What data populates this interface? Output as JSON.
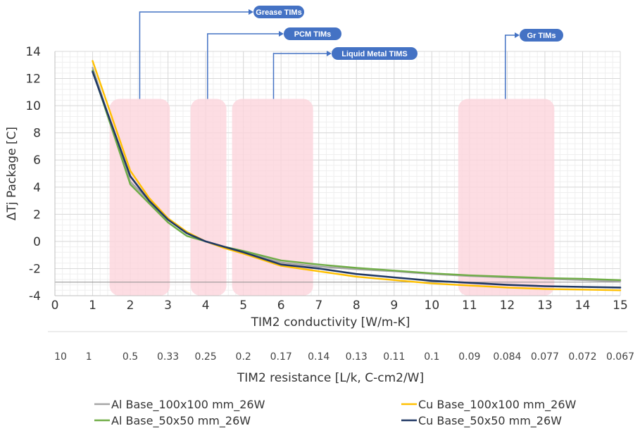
{
  "chart_data": {
    "type": "line",
    "ylabel": "ΔTj Package [C]",
    "xlabel": "TIM2 conductivity [W/m-K]",
    "x2label": "TIM2 resistance [L/k,  C-cm2/W]",
    "xlim": [
      0,
      15
    ],
    "ylim": [
      -4,
      14
    ],
    "xticks": [
      0,
      1,
      2,
      3,
      4,
      5,
      6,
      7,
      8,
      9,
      10,
      11,
      12,
      13,
      14,
      15
    ],
    "yticks": [
      -4,
      -2,
      0,
      2,
      4,
      6,
      8,
      10,
      12,
      14
    ],
    "x2ticks": [
      {
        "x": 0.15,
        "label": "10"
      },
      {
        "x": 0.9,
        "label": "1"
      },
      {
        "x": 2.0,
        "label": "0.5"
      },
      {
        "x": 3.0,
        "label": "0.33"
      },
      {
        "x": 4.0,
        "label": "0.25"
      },
      {
        "x": 5.0,
        "label": "0.2"
      },
      {
        "x": 6.0,
        "label": "0.17"
      },
      {
        "x": 7.0,
        "label": "0.14"
      },
      {
        "x": 8.0,
        "label": "0.13"
      },
      {
        "x": 9.0,
        "label": "0.11"
      },
      {
        "x": 10.0,
        "label": "0.1"
      },
      {
        "x": 11.0,
        "label": "0.09"
      },
      {
        "x": 12.0,
        "label": "0.084"
      },
      {
        "x": 13.0,
        "label": "0.077"
      },
      {
        "x": 14.0,
        "label": "0.072"
      },
      {
        "x": 15.0,
        "label": "0.067"
      }
    ],
    "grid": true,
    "reference_line": -3,
    "legend_position": "bottom",
    "series": [
      {
        "name": "Al Base_100x100 mm_26W",
        "color": "#a5a5a5",
        "x": [
          1,
          2,
          2.5,
          3,
          3.5,
          4,
          4.5,
          5,
          6,
          7,
          8,
          9,
          10,
          11,
          12,
          13,
          14,
          15
        ],
        "y": [
          12.8,
          4.4,
          3.0,
          1.6,
          0.6,
          0.0,
          -0.4,
          -0.8,
          -1.55,
          -1.85,
          -2.05,
          -2.2,
          -2.4,
          -2.55,
          -2.65,
          -2.75,
          -2.85,
          -2.95
        ]
      },
      {
        "name": "Cu Base_100x100 mm_26W",
        "color": "#ffc000",
        "x": [
          1,
          2,
          2.5,
          3,
          3.5,
          4,
          4.5,
          5,
          6,
          7,
          8,
          9,
          10,
          11,
          12,
          13,
          14,
          15
        ],
        "y": [
          13.3,
          5.2,
          3.2,
          1.7,
          0.7,
          0.0,
          -0.5,
          -0.9,
          -1.8,
          -2.2,
          -2.6,
          -2.85,
          -3.1,
          -3.25,
          -3.4,
          -3.5,
          -3.55,
          -3.6
        ]
      },
      {
        "name": "Al  Base_50x50 mm_26W",
        "color": "#70ad47",
        "x": [
          1,
          2,
          2.5,
          3,
          3.5,
          4,
          4.5,
          5,
          6,
          7,
          8,
          9,
          10,
          11,
          12,
          13,
          14,
          15
        ],
        "y": [
          12.6,
          4.2,
          2.8,
          1.4,
          0.4,
          0.0,
          -0.4,
          -0.7,
          -1.4,
          -1.7,
          -1.95,
          -2.15,
          -2.35,
          -2.5,
          -2.6,
          -2.7,
          -2.75,
          -2.85
        ]
      },
      {
        "name": "Cu Base_50x50 mm_26W",
        "color": "#203864",
        "x": [
          1,
          2,
          2.5,
          3,
          3.5,
          4,
          4.5,
          5,
          6,
          7,
          8,
          9,
          10,
          11,
          12,
          13,
          14,
          15
        ],
        "y": [
          12.5,
          4.8,
          3.0,
          1.6,
          0.6,
          0.0,
          -0.4,
          -0.8,
          -1.7,
          -2.0,
          -2.4,
          -2.65,
          -2.9,
          -3.05,
          -3.2,
          -3.3,
          -3.35,
          -3.4
        ]
      }
    ],
    "regions": [
      {
        "x0": 1.45,
        "x1": 3.05,
        "y0": -4.0,
        "y1": 10.5
      },
      {
        "x0": 3.6,
        "x1": 4.55,
        "y0": -4.0,
        "y1": 10.5
      },
      {
        "x0": 4.7,
        "x1": 6.85,
        "y0": -4.0,
        "y1": 10.5
      },
      {
        "x0": 10.7,
        "x1": 13.25,
        "y0": -4.0,
        "y1": 10.5
      }
    ],
    "annotations": [
      {
        "label": "Grease TIMs",
        "x": 2.25,
        "y": 10.5
      },
      {
        "label": "PCM TIMs",
        "x": 4.05,
        "y": 10.5
      },
      {
        "label": "Liquid Metal TIMS",
        "x": 5.8,
        "y": 10.5
      },
      {
        "label": "Gr TIMs",
        "x": 11.95,
        "y": 10.5
      }
    ],
    "colors": {
      "region_fill": "#fcd5dc",
      "callout_fill": "#4472c4",
      "grid_major": "#d9d9d9",
      "grid_minor": "#efefef"
    }
  }
}
